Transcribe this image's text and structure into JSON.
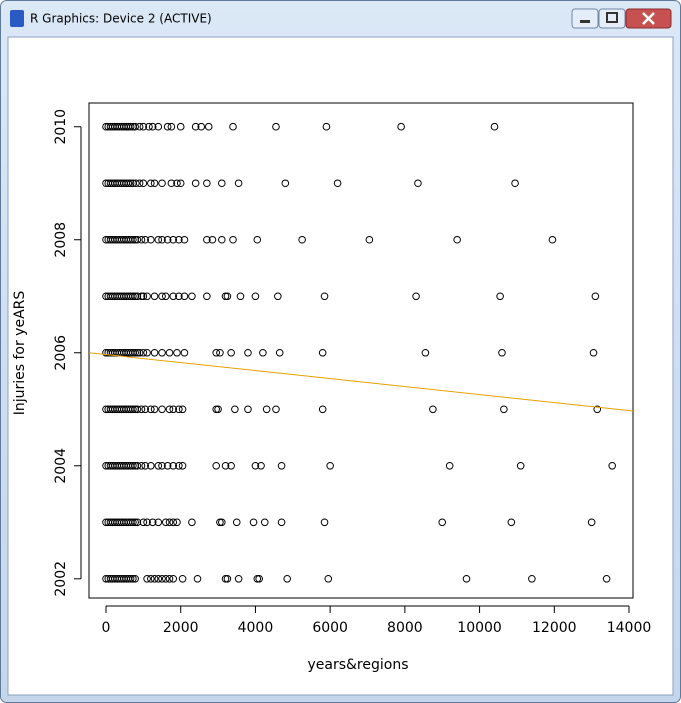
{
  "window": {
    "title": "R Graphics: Device 2 (ACTIVE)"
  },
  "chart_data": {
    "type": "scatter",
    "xlabel": "years&regions",
    "ylabel": "Injuries for yeARS",
    "xlim": [
      -455,
      14107
    ],
    "ylim": [
      2001.66,
      2010.42
    ],
    "xticks": [
      0,
      2000,
      4000,
      6000,
      8000,
      10000,
      12000,
      14000
    ],
    "yticks": [
      2002,
      2004,
      2006,
      2008,
      2010
    ],
    "color": "#000000",
    "x": [
      0,
      60,
      120,
      180,
      240,
      300,
      360,
      420,
      480,
      540,
      600,
      660,
      720,
      780,
      900,
      1000,
      1150,
      1250,
      1400,
      1650,
      1750,
      2000,
      2400,
      2550,
      2750,
      3400,
      4550,
      5900,
      7900,
      10400,
      0,
      60,
      120,
      180,
      240,
      300,
      360,
      420,
      480,
      540,
      600,
      660,
      720,
      800,
      900,
      1000,
      1200,
      1300,
      1500,
      1750,
      1900,
      2000,
      2400,
      2700,
      3100,
      3550,
      4800,
      6200,
      8350,
      10950,
      0,
      60,
      120,
      180,
      240,
      300,
      360,
      420,
      480,
      540,
      600,
      660,
      720,
      780,
      840,
      950,
      1050,
      1200,
      1400,
      1500,
      1650,
      1800,
      1950,
      2100,
      2700,
      2850,
      3100,
      3400,
      4050,
      5250,
      7050,
      9400,
      11950,
      0,
      60,
      120,
      180,
      240,
      300,
      360,
      420,
      480,
      540,
      600,
      660,
      720,
      780,
      840,
      950,
      1000,
      1100,
      1300,
      1500,
      1600,
      1800,
      1950,
      2100,
      2300,
      2700,
      3200,
      3250,
      3600,
      4000,
      4600,
      5850,
      8300,
      10550,
      13100,
      0,
      60,
      120,
      180,
      240,
      300,
      360,
      420,
      480,
      540,
      600,
      660,
      720,
      780,
      840,
      900,
      1000,
      1100,
      1300,
      1500,
      1700,
      1900,
      2100,
      2950,
      3050,
      3350,
      3800,
      4200,
      4650,
      5800,
      8550,
      10600,
      13050,
      0,
      60,
      120,
      180,
      240,
      300,
      360,
      420,
      480,
      540,
      600,
      660,
      720,
      780,
      840,
      950,
      1050,
      1200,
      1300,
      1500,
      1700,
      1800,
      1950,
      2050,
      2950,
      3000,
      3450,
      3800,
      4300,
      4550,
      5800,
      8750,
      10650,
      13150,
      0,
      60,
      120,
      180,
      240,
      300,
      360,
      420,
      480,
      540,
      600,
      660,
      720,
      780,
      840,
      950,
      1050,
      1200,
      1400,
      1500,
      1650,
      1800,
      1950,
      2050,
      2950,
      3200,
      3350,
      4000,
      4150,
      4700,
      6000,
      9200,
      11100,
      13550,
      0,
      60,
      120,
      180,
      240,
      300,
      360,
      420,
      480,
      540,
      600,
      660,
      720,
      780,
      840,
      1000,
      1100,
      1250,
      1400,
      1600,
      1700,
      1800,
      1900,
      2300,
      3050,
      3100,
      3500,
      3950,
      4250,
      4700,
      5850,
      9000,
      10850,
      13000,
      0,
      60,
      120,
      180,
      240,
      300,
      360,
      420,
      480,
      540,
      600,
      660,
      720,
      780,
      1100,
      1200,
      1300,
      1400,
      1500,
      1600,
      1700,
      1800,
      2050,
      2450,
      3200,
      3250,
      3550,
      4050,
      4100,
      4850,
      5950,
      9650,
      11400,
      13400
    ],
    "values": [
      2010,
      2010,
      2010,
      2010,
      2010,
      2010,
      2010,
      2010,
      2010,
      2010,
      2010,
      2010,
      2010,
      2010,
      2010,
      2010,
      2010,
      2010,
      2010,
      2010,
      2010,
      2010,
      2010,
      2010,
      2010,
      2010,
      2010,
      2010,
      2010,
      2010,
      2009,
      2009,
      2009,
      2009,
      2009,
      2009,
      2009,
      2009,
      2009,
      2009,
      2009,
      2009,
      2009,
      2009,
      2009,
      2009,
      2009,
      2009,
      2009,
      2009,
      2009,
      2009,
      2009,
      2009,
      2009,
      2009,
      2009,
      2009,
      2009,
      2009,
      2008,
      2008,
      2008,
      2008,
      2008,
      2008,
      2008,
      2008,
      2008,
      2008,
      2008,
      2008,
      2008,
      2008,
      2008,
      2008,
      2008,
      2008,
      2008,
      2008,
      2008,
      2008,
      2008,
      2008,
      2008,
      2008,
      2008,
      2008,
      2008,
      2008,
      2008,
      2008,
      2008,
      2007,
      2007,
      2007,
      2007,
      2007,
      2007,
      2007,
      2007,
      2007,
      2007,
      2007,
      2007,
      2007,
      2007,
      2007,
      2007,
      2007,
      2007,
      2007,
      2007,
      2007,
      2007,
      2007,
      2007,
      2007,
      2007,
      2007,
      2007,
      2007,
      2007,
      2007,
      2007,
      2007,
      2007,
      2007,
      2006,
      2006,
      2006,
      2006,
      2006,
      2006,
      2006,
      2006,
      2006,
      2006,
      2006,
      2006,
      2006,
      2006,
      2006,
      2006,
      2006,
      2006,
      2006,
      2006,
      2006,
      2006,
      2006,
      2006,
      2006,
      2006,
      2006,
      2006,
      2006,
      2006,
      2006,
      2006,
      2006,
      2005,
      2005,
      2005,
      2005,
      2005,
      2005,
      2005,
      2005,
      2005,
      2005,
      2005,
      2005,
      2005,
      2005,
      2005,
      2005,
      2005,
      2005,
      2005,
      2005,
      2005,
      2005,
      2005,
      2005,
      2005,
      2005,
      2005,
      2005,
      2005,
      2005,
      2005,
      2005,
      2005,
      2005,
      2004,
      2004,
      2004,
      2004,
      2004,
      2004,
      2004,
      2004,
      2004,
      2004,
      2004,
      2004,
      2004,
      2004,
      2004,
      2004,
      2004,
      2004,
      2004,
      2004,
      2004,
      2004,
      2004,
      2004,
      2004,
      2004,
      2004,
      2004,
      2004,
      2004,
      2004,
      2004,
      2004,
      2004,
      2003,
      2003,
      2003,
      2003,
      2003,
      2003,
      2003,
      2003,
      2003,
      2003,
      2003,
      2003,
      2003,
      2003,
      2003,
      2003,
      2003,
      2003,
      2003,
      2003,
      2003,
      2003,
      2003,
      2003,
      2003,
      2003,
      2003,
      2003,
      2003,
      2003,
      2003,
      2003,
      2003,
      2003,
      2002,
      2002,
      2002,
      2002,
      2002,
      2002,
      2002,
      2002,
      2002,
      2002,
      2002,
      2002,
      2002,
      2002,
      2002,
      2002,
      2002,
      2002,
      2002,
      2002,
      2002,
      2002,
      2002,
      2002,
      2002,
      2002,
      2002,
      2002,
      2002,
      2002,
      2002,
      2002,
      2002,
      2002
    ],
    "trend_line": {
      "x": [
        -455,
        14107
      ],
      "values": [
        2006.0,
        2004.97
      ],
      "color": "#e8a000"
    }
  }
}
